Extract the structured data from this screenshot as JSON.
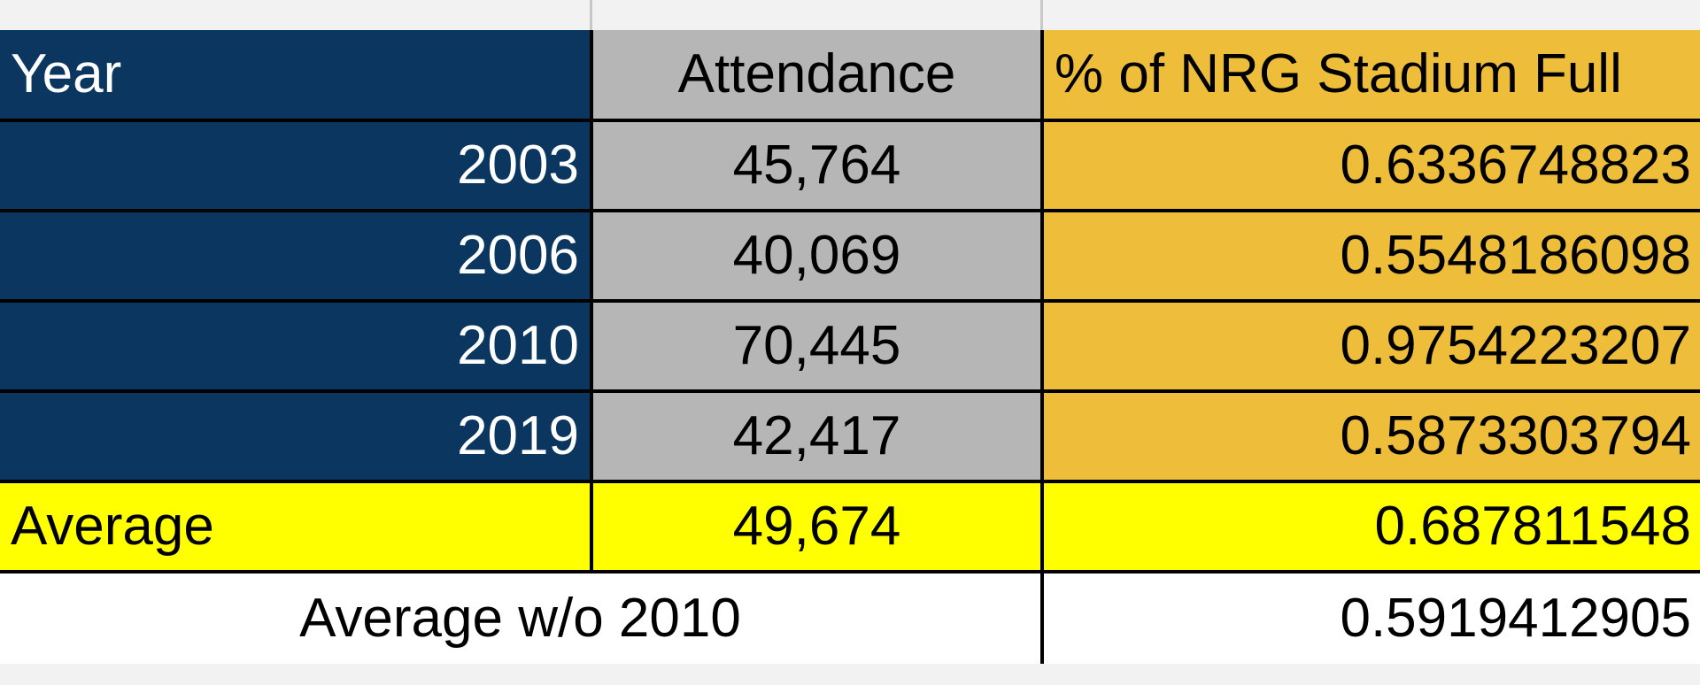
{
  "sheet": {
    "headers": {
      "year": "Year",
      "attendance": "Attendance",
      "percent_full": "% of NRG Stadium Full"
    },
    "rows": [
      {
        "year": "2003",
        "attendance": "45,764",
        "percent_full": "0.6336748823"
      },
      {
        "year": "2006",
        "attendance": "40,069",
        "percent_full": "0.5548186098"
      },
      {
        "year": "2010",
        "attendance": "70,445",
        "percent_full": "0.9754223207"
      },
      {
        "year": "2019",
        "attendance": "42,417",
        "percent_full": "0.5873303794"
      }
    ],
    "average": {
      "label": "Average",
      "attendance": "49,674",
      "percent_full": "0.687811548"
    },
    "average_without_2010": {
      "label": "Average w/o 2010",
      "percent_full": "0.5919412905"
    }
  },
  "colors": {
    "year_column": "#0b3660",
    "attendance_column": "#b6b6b6",
    "percent_column": "#eebe3a",
    "average_row": "#ffff00",
    "sheet_background": "#f2f2f2"
  }
}
